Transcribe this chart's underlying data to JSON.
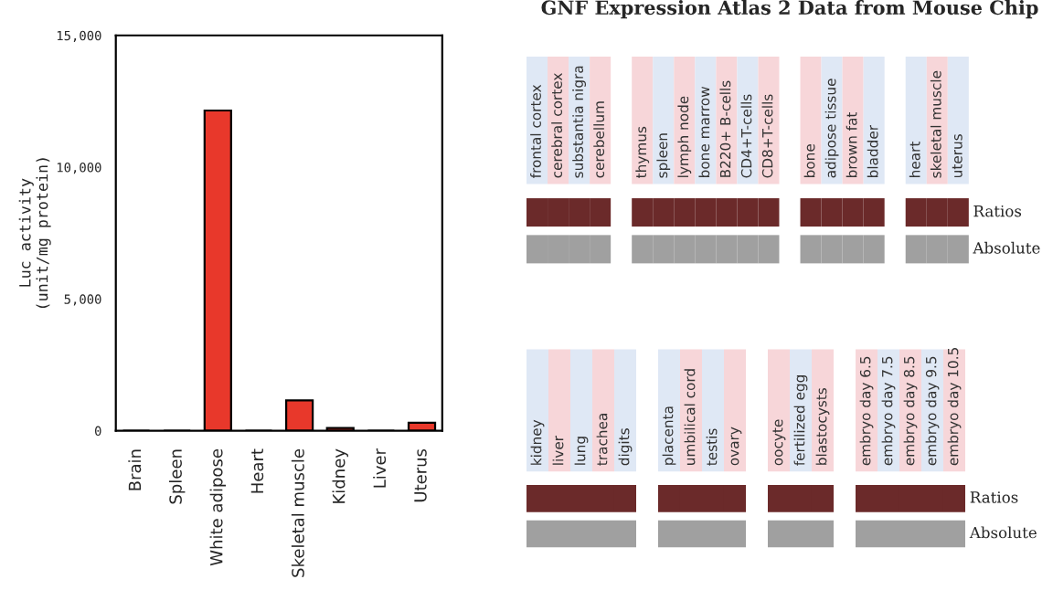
{
  "chart_data": [
    {
      "type": "bar",
      "ylabel": "Luc activity\n(unit/mg protein)",
      "categories": [
        "Brain",
        "Spleen",
        "White adipose",
        "Heart",
        "Skeletal muscle",
        "Kidney",
        "Liver",
        "Uterus"
      ],
      "values": [
        0,
        0,
        12150,
        0,
        1150,
        100,
        0,
        300
      ],
      "color": "#e8382b",
      "ylim": [
        0,
        15000
      ],
      "yticks": [
        0,
        {
          "value": 5000,
          "label": "5,000"
        },
        {
          "value": 10000,
          "label": "10,000"
        },
        {
          "value": 15000,
          "label": "15,000"
        }
      ],
      "grid": false
    },
    {
      "type": "other",
      "title": "GNF Expression Atlas 2 Data from Mouse Chip",
      "categories": [
        "frontal cortex",
        "cerebral cortex",
        "substantia nigra",
        "cerebellum",
        null,
        "thymus",
        "spleen",
        "lymph node",
        "bone marrow",
        "B220+ B-cells",
        "CD4+T-cells",
        "CD8+T-cells",
        null,
        "bone",
        "adipose tissue",
        "brown fat",
        "bladder",
        null,
        "heart",
        "skeletal muscle",
        "uterus"
      ],
      "y_categories": [
        "Ratios",
        "Absolute"
      ]
    },
    {
      "type": "other",
      "categories": [
        "kidney",
        "liver",
        "lung",
        "trachea",
        "digits",
        null,
        "placenta",
        "umbilical cord",
        "testis",
        "ovary",
        null,
        "oocyte",
        "fertilized egg",
        "blastocysts",
        null,
        "embryo day 6.5",
        "embryo day 7.5",
        "embryo day 8.5",
        "embryo day 9.5",
        "embryo day 10.5"
      ],
      "y_categories": [
        "Ratios",
        "Absolute"
      ]
    }
  ]
}
